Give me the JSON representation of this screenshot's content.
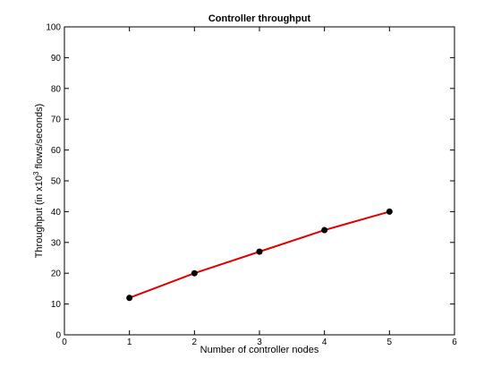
{
  "chart_data": {
    "type": "line",
    "title": "Controller throughput",
    "xlabel": "Number of controller nodes",
    "ylabel_prefix": "Throughput (in x10",
    "ylabel_sup": "3",
    "ylabel_suffix": " flows/seconds)",
    "xlim": [
      0,
      6
    ],
    "ylim": [
      0,
      100
    ],
    "xticks": [
      0,
      1,
      2,
      3,
      4,
      5,
      6
    ],
    "yticks": [
      0,
      10,
      20,
      30,
      40,
      50,
      60,
      70,
      80,
      90,
      100
    ],
    "grid": false,
    "series": [
      {
        "x": [
          1,
          2,
          3,
          4,
          5
        ],
        "y": [
          12,
          20,
          27,
          34,
          40
        ],
        "line_color": "#e00000",
        "marker_color": "#000000"
      }
    ]
  }
}
